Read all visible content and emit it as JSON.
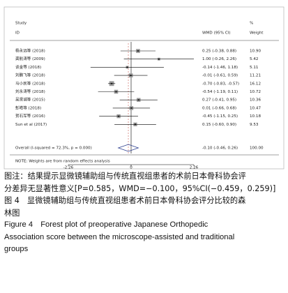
{
  "chart_data": {
    "type": "forest",
    "header_study": "Study",
    "header_id": "ID",
    "header_effect": "WMD (95% CI)",
    "header_pct": "%",
    "header_weight": "Weight",
    "studies": [
      "杨永远等 (2018)",
      "龚航涛等 (2009)",
      "谈金等 (2018)",
      "刘鹏飞等 (2018)",
      "马小民等 (2018)",
      "刘永涛等 (2018)",
      "吴贤诚等 (2015)",
      "彭皓等 (2018)",
      "贺石军等 (2016)",
      "Sun et al (2017)"
    ],
    "values": [
      0.25,
      1.0,
      -0.14,
      -0.01,
      -0.7,
      -0.54,
      0.27,
      0.01,
      -0.45,
      0.15
    ],
    "ci_lower": [
      -0.38,
      -0.26,
      -1.46,
      -0.61,
      -0.83,
      -1.19,
      -0.41,
      -0.66,
      -1.15,
      -0.6
    ],
    "ci_upper": [
      0.88,
      2.26,
      1.18,
      0.59,
      -0.57,
      0.11,
      0.95,
      0.68,
      0.25,
      0.9
    ],
    "value_labels": [
      "0.25 (-0.38, 0.88)",
      "1.00 (-0.26, 2.26)",
      "-0.14 (-1.46, 1.18)",
      "-0.01 (-0.61, 0.59)",
      "-0.70 (-0.83, -0.57)",
      "-0.54 (-1.19, 0.11)",
      "0.27 (-0.41, 0.95)",
      "0.01 (-0.66, 0.68)",
      "-0.45 (-1.15, 0.25)",
      "0.15 (-0.60, 0.90)"
    ],
    "weights": [
      10.9,
      5.42,
      5.11,
      11.21,
      16.12,
      10.72,
      10.36,
      10.47,
      10.18,
      9.53
    ],
    "weight_labels": [
      "10.90",
      "5.42",
      "5.11",
      "11.21",
      "16.12",
      "10.72",
      "10.36",
      "10.47",
      "10.18",
      "9.53"
    ],
    "overall": {
      "label": "Overall  (I-squared = 72.3%, p = 0.000)",
      "value": -0.1,
      "ci_lower": -0.46,
      "ci_upper": 0.26,
      "value_label": "-0.10 (-0.46, 0.26)",
      "weight": 100.0,
      "weight_label": "100.00"
    },
    "note": "NOTE: Weights are from random effects analysis",
    "xlim": [
      -2.26,
      2.26
    ],
    "xticks": [
      -2.26,
      0,
      2.26
    ],
    "marker_color": "#9a9a9a",
    "diamond_color": "#2c3e8f",
    "overall_line_color": "#c0392b"
  },
  "caption": [
    "图注：结果提示显微镜辅助组与传统直视组患者的术前日本骨科协会评",
    "分差异无显著性意义[P=0.585，WMD=−0.100，95%CI(−0.459，0.259)]",
    "图 4　显微镜辅助组与传统直视组患者术前日本骨科协会评分比较的森",
    "林图",
    "Figure 4　Forest plot of preoperative Japanese Orthopedic",
    "Association score between the microscope-assisted and traditional",
    "groups"
  ]
}
